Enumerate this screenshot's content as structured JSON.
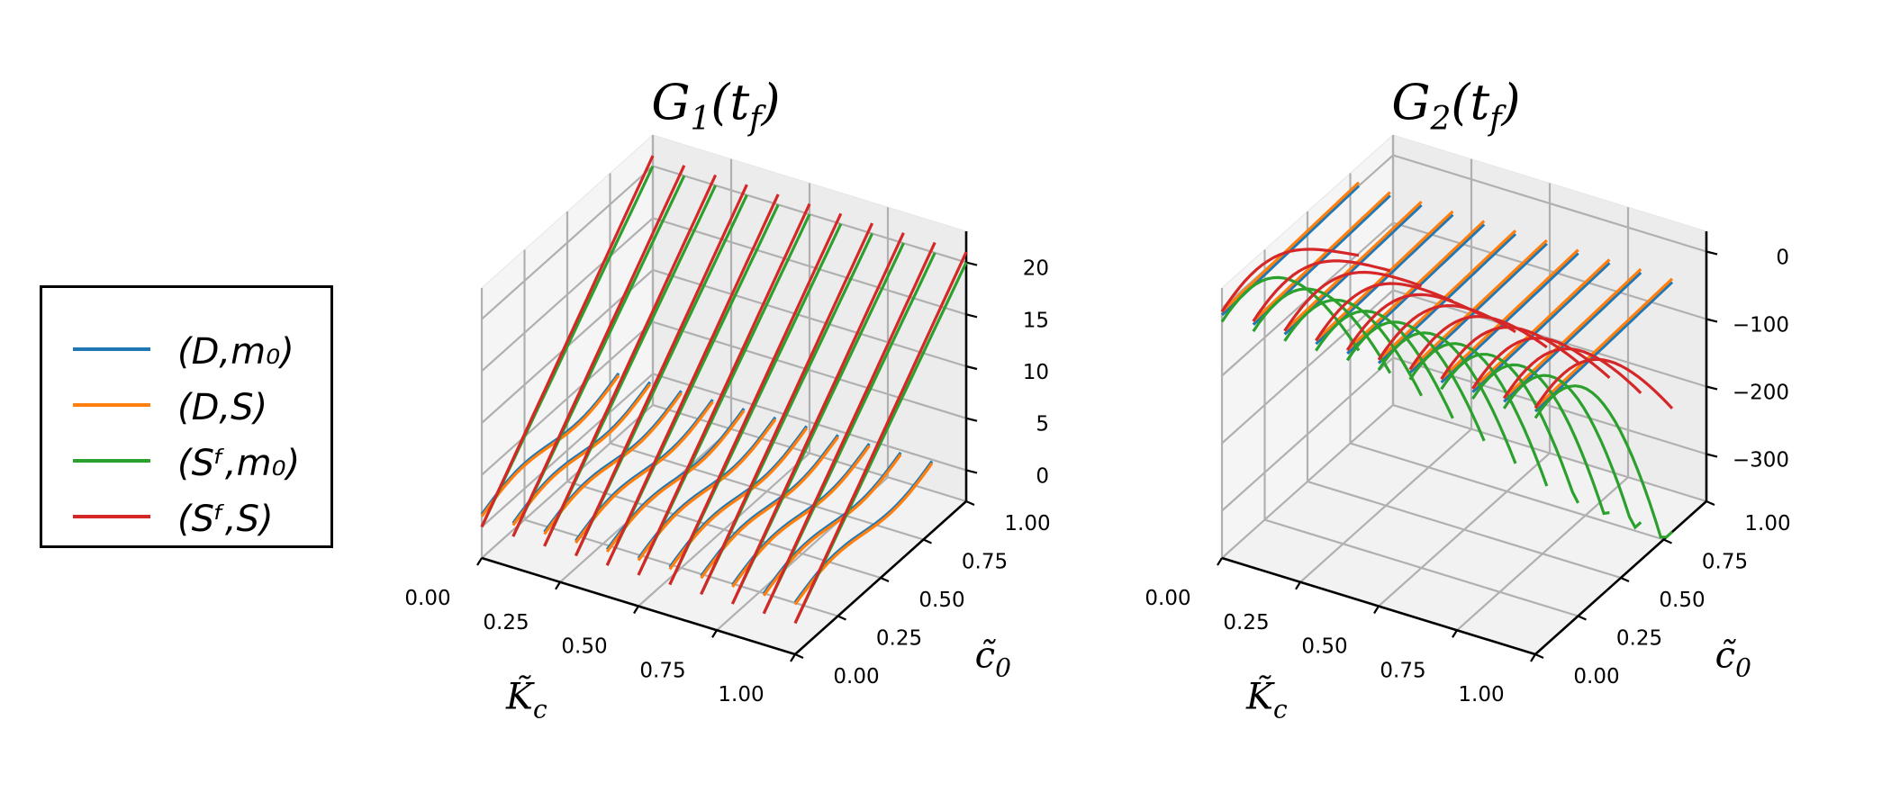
{
  "chart_data": [
    {
      "type": "line3d",
      "title": "G₁(t_f)",
      "title_display": "G",
      "title_sub": "1",
      "title_arg": "(t",
      "title_arg_sub": "f",
      "title_close": ")",
      "xlabel": "K̃c",
      "xlabel_display": "K̃",
      "xlabel_sub": "c",
      "ylabel": "c̃0",
      "ylabel_display": "c̃",
      "ylabel_sub": "0",
      "xlim": [
        0,
        1
      ],
      "ylim": [
        0,
        1
      ],
      "zlim": [
        -3,
        23
      ],
      "x_ticks": [
        "0.00",
        "0.25",
        "0.50",
        "0.75",
        "1.00"
      ],
      "y_ticks": [
        "0.00",
        "0.25",
        "0.50",
        "0.75",
        "1.00"
      ],
      "z_ticks": [
        "0",
        "5",
        "10",
        "15",
        "20"
      ],
      "x_tick_values": [
        0,
        0.25,
        0.5,
        0.75,
        1
      ],
      "y_tick_values": [
        0,
        0.25,
        0.5,
        0.75,
        1
      ],
      "z_tick_values": [
        0,
        5,
        10,
        15,
        20
      ],
      "x_lines": [
        0.0,
        0.1,
        0.2,
        0.3,
        0.4,
        0.5,
        0.6,
        0.7,
        0.8,
        0.9,
        1.0
      ],
      "series": [
        {
          "name": "(D,m₀)",
          "color": "#1f77b4",
          "y_range": [
            0,
            0.8
          ],
          "shape": "linear_wave",
          "start": 1.2,
          "end": 3.0,
          "wave": 1.2,
          "slope_x": 0.4
        },
        {
          "name": "(D,S)",
          "color": "#ff7f0e",
          "y_range": [
            0,
            0.8
          ],
          "shape": "linear_wave",
          "start": 1.0,
          "end": 2.8,
          "wave": 1.2,
          "slope_x": 0.4
        },
        {
          "name": "(S_f,m₀)",
          "color": "#2ca02c",
          "y_range": [
            0,
            1.0
          ],
          "shape": "linear",
          "start": 0.0,
          "end": 20.0,
          "slope_x": 0.0
        },
        {
          "name": "(S_f,S)",
          "color": "#d62728",
          "y_range": [
            0,
            1.0
          ],
          "shape": "linear",
          "start": 0.0,
          "end": 21.0,
          "slope_x": 0.0
        }
      ]
    },
    {
      "type": "line3d",
      "title": "G₂(t_f)",
      "title_display": "G",
      "title_sub": "2",
      "title_arg": "(t",
      "title_arg_sub": "f",
      "title_close": ")",
      "xlabel": "K̃c",
      "xlabel_display": "K̃",
      "xlabel_sub": "c",
      "ylabel": "c̃0",
      "ylabel_display": "c̃",
      "ylabel_sub": "0",
      "xlim": [
        0,
        1
      ],
      "ylim": [
        0,
        1
      ],
      "zlim": [
        -370,
        30
      ],
      "x_ticks": [
        "0.00",
        "0.25",
        "0.50",
        "0.75",
        "1.00"
      ],
      "y_ticks": [
        "0.00",
        "0.25",
        "0.50",
        "0.75",
        "1.00"
      ],
      "z_ticks": [
        "0",
        "−100",
        "−200",
        "−300"
      ],
      "x_tick_values": [
        0,
        0.25,
        0.5,
        0.75,
        1
      ],
      "y_tick_values": [
        0,
        0.25,
        0.5,
        0.75,
        1
      ],
      "z_tick_values": [
        0,
        -100,
        -200,
        -300
      ],
      "x_lines": [
        0.0,
        0.1,
        0.2,
        0.3,
        0.4,
        0.5,
        0.6,
        0.7,
        0.8,
        0.9,
        1.0
      ],
      "series": [
        {
          "name": "(D,m₀)",
          "color": "#1f77b4",
          "y_range": [
            0,
            0.8
          ],
          "shape": "linear",
          "start": -10,
          "end": 0,
          "slope_x": 0.0
        },
        {
          "name": "(D,S)",
          "color": "#ff7f0e",
          "y_range": [
            0,
            0.8
          ],
          "shape": "linear",
          "start": -5,
          "end": 5,
          "slope_x": 0.0
        },
        {
          "name": "(S_f,m₀)",
          "color": "#2ca02c",
          "y_range": [
            0,
            0.8
          ],
          "shape": "parabola",
          "base": -20,
          "depth": 320,
          "slope_x": 0.3
        },
        {
          "name": "(S_f,S)",
          "color": "#d62728",
          "y_range": [
            0,
            0.8
          ],
          "shape": "parabola",
          "base": -5,
          "depth": 140,
          "slope_x": 0.2
        }
      ]
    }
  ],
  "legend": {
    "items": [
      {
        "label": "(D,m₀)",
        "color": "#1f77b4"
      },
      {
        "label": "(D,S)",
        "color": "#ff7f0e"
      },
      {
        "label": "(S_f,m₀)",
        "color": "#2ca02c"
      },
      {
        "label": "(S_f,S)",
        "color": "#d62728"
      }
    ],
    "labels_display": [
      "(D,m₀)",
      "(D,S)",
      "(Sᶠ,m₀)",
      "(Sᶠ,S)"
    ]
  }
}
